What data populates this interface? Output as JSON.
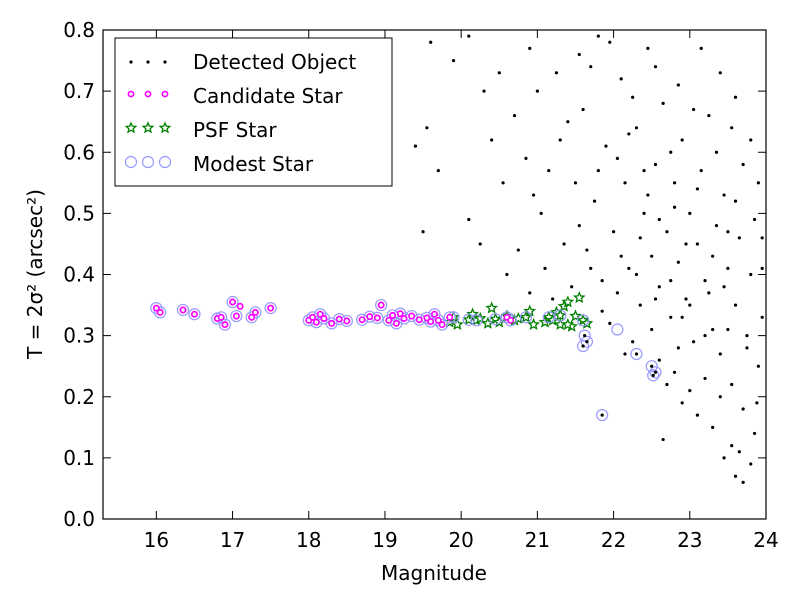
{
  "chart_data": {
    "type": "scatter",
    "title": "",
    "xlabel": "Magnitude",
    "ylabel": "T = 2σ² (arcsec²)",
    "xlim": [
      15.3,
      24.0
    ],
    "ylim": [
      0.0,
      0.8
    ],
    "xticks": [
      "16",
      "17",
      "18",
      "19",
      "20",
      "21",
      "22",
      "23",
      "24"
    ],
    "yticks": [
      "0.0",
      "0.1",
      "0.2",
      "0.3",
      "0.4",
      "0.5",
      "0.6",
      "0.7",
      "0.8"
    ],
    "grid": false,
    "legend_position": "top-left",
    "series": [
      {
        "name": "Detected Object",
        "marker": "dot",
        "color": "#000000",
        "points": [
          [
            19.6,
            0.78
          ],
          [
            19.9,
            0.75
          ],
          [
            20.1,
            0.79
          ],
          [
            20.3,
            0.7
          ],
          [
            20.5,
            0.73
          ],
          [
            20.7,
            0.66
          ],
          [
            20.9,
            0.77
          ],
          [
            21.0,
            0.7
          ],
          [
            19.55,
            0.64
          ],
          [
            19.7,
            0.57
          ],
          [
            20.1,
            0.49
          ],
          [
            20.25,
            0.45
          ],
          [
            20.4,
            0.62
          ],
          [
            20.55,
            0.55
          ],
          [
            20.85,
            0.59
          ],
          [
            21.05,
            0.5
          ],
          [
            20.6,
            0.4
          ],
          [
            20.75,
            0.44
          ],
          [
            20.9,
            0.37
          ],
          [
            21.1,
            0.41
          ],
          [
            21.2,
            0.36
          ],
          [
            21.35,
            0.45
          ],
          [
            21.45,
            0.38
          ],
          [
            20.95,
            0.53
          ],
          [
            19.4,
            0.61
          ],
          [
            19.5,
            0.47
          ],
          [
            21.15,
            0.57
          ],
          [
            21.3,
            0.62
          ],
          [
            21.5,
            0.55
          ],
          [
            21.6,
            0.67
          ],
          [
            21.7,
            0.74
          ],
          [
            21.8,
            0.79
          ],
          [
            21.65,
            0.44
          ],
          [
            21.75,
            0.52
          ],
          [
            21.85,
            0.39
          ],
          [
            21.9,
            0.61
          ],
          [
            22.0,
            0.47
          ],
          [
            22.1,
            0.72
          ],
          [
            22.15,
            0.55
          ],
          [
            22.2,
            0.41
          ],
          [
            22.3,
            0.64
          ],
          [
            22.35,
            0.35
          ],
          [
            22.4,
            0.5
          ],
          [
            22.45,
            0.77
          ],
          [
            22.5,
            0.43
          ],
          [
            22.55,
            0.58
          ],
          [
            22.6,
            0.38
          ],
          [
            22.65,
            0.68
          ],
          [
            22.7,
            0.47
          ],
          [
            22.75,
            0.33
          ],
          [
            22.8,
            0.55
          ],
          [
            22.85,
            0.42
          ],
          [
            22.9,
            0.62
          ],
          [
            22.95,
            0.36
          ],
          [
            23.0,
            0.5
          ],
          [
            23.05,
            0.29
          ],
          [
            23.1,
            0.45
          ],
          [
            23.15,
            0.57
          ],
          [
            23.2,
            0.39
          ],
          [
            23.25,
            0.66
          ],
          [
            23.3,
            0.31
          ],
          [
            23.35,
            0.48
          ],
          [
            23.4,
            0.27
          ],
          [
            23.45,
            0.53
          ],
          [
            23.5,
            0.41
          ],
          [
            23.55,
            0.22
          ],
          [
            23.6,
            0.35
          ],
          [
            23.65,
            0.46
          ],
          [
            23.7,
            0.18
          ],
          [
            23.75,
            0.3
          ],
          [
            23.8,
            0.4
          ],
          [
            23.85,
            0.14
          ],
          [
            23.9,
            0.25
          ],
          [
            23.95,
            0.33
          ],
          [
            23.6,
            0.07
          ],
          [
            23.7,
            0.06
          ],
          [
            23.8,
            0.09
          ],
          [
            23.55,
            0.12
          ],
          [
            23.65,
            0.11
          ],
          [
            23.88,
            0.19
          ],
          [
            22.05,
            0.37
          ],
          [
            22.25,
            0.29
          ],
          [
            22.5,
            0.31
          ],
          [
            22.6,
            0.26
          ],
          [
            22.8,
            0.24
          ],
          [
            22.9,
            0.19
          ],
          [
            23.0,
            0.21
          ],
          [
            23.1,
            0.17
          ],
          [
            22.65,
            0.13
          ],
          [
            23.3,
            0.15
          ],
          [
            23.45,
            0.1
          ],
          [
            21.95,
            0.32
          ],
          [
            22.15,
            0.27
          ],
          [
            22.7,
            0.22
          ],
          [
            23.2,
            0.23
          ],
          [
            23.4,
            0.2
          ],
          [
            21.4,
            0.65
          ],
          [
            21.55,
            0.76
          ],
          [
            21.25,
            0.73
          ],
          [
            21.95,
            0.78
          ],
          [
            22.25,
            0.69
          ],
          [
            22.55,
            0.74
          ],
          [
            22.85,
            0.71
          ],
          [
            23.15,
            0.77
          ],
          [
            23.4,
            0.73
          ],
          [
            23.6,
            0.69
          ],
          [
            23.8,
            0.62
          ],
          [
            23.9,
            0.55
          ],
          [
            23.7,
            0.58
          ],
          [
            23.55,
            0.64
          ],
          [
            23.35,
            0.6
          ],
          [
            23.05,
            0.67
          ],
          [
            22.95,
            0.45
          ],
          [
            23.25,
            0.37
          ],
          [
            23.5,
            0.31
          ],
          [
            23.75,
            0.28
          ],
          [
            23.95,
            0.41
          ],
          [
            22.35,
            0.46
          ],
          [
            22.45,
            0.53
          ],
          [
            22.75,
            0.6
          ],
          [
            21.55,
            0.48
          ],
          [
            21.8,
            0.57
          ],
          [
            22.05,
            0.59
          ],
          [
            22.2,
            0.63
          ],
          [
            22.4,
            0.57
          ],
          [
            22.6,
            0.49
          ],
          [
            22.8,
            0.51
          ],
          [
            23.1,
            0.54
          ],
          [
            21.7,
            0.41
          ],
          [
            21.85,
            0.34
          ],
          [
            22.1,
            0.43
          ],
          [
            22.3,
            0.4
          ],
          [
            22.55,
            0.36
          ],
          [
            22.75,
            0.39
          ],
          [
            22.9,
            0.33
          ],
          [
            23.2,
            0.3
          ],
          [
            23.3,
            0.43
          ],
          [
            23.5,
            0.47
          ],
          [
            23.6,
            0.52
          ],
          [
            23.85,
            0.49
          ],
          [
            23.95,
            0.46
          ],
          [
            23.45,
            0.38
          ],
          [
            23.0,
            0.35
          ],
          [
            22.85,
            0.28
          ]
        ]
      },
      {
        "name": "Candidate Star",
        "marker": "circle",
        "color": "#ff00ff",
        "points": [
          [
            16.0,
            0.345
          ],
          [
            16.05,
            0.338
          ],
          [
            16.35,
            0.342
          ],
          [
            16.5,
            0.335
          ],
          [
            16.8,
            0.328
          ],
          [
            16.85,
            0.33
          ],
          [
            16.9,
            0.318
          ],
          [
            17.0,
            0.355
          ],
          [
            17.05,
            0.332
          ],
          [
            17.1,
            0.348
          ],
          [
            17.25,
            0.33
          ],
          [
            17.3,
            0.338
          ],
          [
            17.5,
            0.345
          ],
          [
            18.0,
            0.325
          ],
          [
            18.05,
            0.33
          ],
          [
            18.1,
            0.322
          ],
          [
            18.15,
            0.335
          ],
          [
            18.2,
            0.328
          ],
          [
            18.3,
            0.32
          ],
          [
            18.4,
            0.327
          ],
          [
            18.5,
            0.324
          ],
          [
            18.7,
            0.326
          ],
          [
            18.8,
            0.331
          ],
          [
            18.9,
            0.329
          ],
          [
            18.95,
            0.35
          ],
          [
            19.05,
            0.325
          ],
          [
            19.1,
            0.333
          ],
          [
            19.15,
            0.32
          ],
          [
            19.2,
            0.336
          ],
          [
            19.25,
            0.328
          ],
          [
            19.35,
            0.332
          ],
          [
            19.45,
            0.326
          ],
          [
            19.55,
            0.329
          ],
          [
            19.6,
            0.323
          ],
          [
            19.65,
            0.335
          ],
          [
            19.7,
            0.325
          ],
          [
            19.75,
            0.318
          ],
          [
            19.85,
            0.33
          ],
          [
            20.6,
            0.33
          ],
          [
            20.65,
            0.325
          ]
        ]
      },
      {
        "name": "PSF Star",
        "marker": "star",
        "color": "#008000",
        "points": [
          [
            19.85,
            0.322
          ],
          [
            19.9,
            0.33
          ],
          [
            19.95,
            0.318
          ],
          [
            20.1,
            0.326
          ],
          [
            20.15,
            0.335
          ],
          [
            20.2,
            0.325
          ],
          [
            20.25,
            0.328
          ],
          [
            20.35,
            0.32
          ],
          [
            20.4,
            0.345
          ],
          [
            20.45,
            0.327
          ],
          [
            20.5,
            0.322
          ],
          [
            20.6,
            0.332
          ],
          [
            20.7,
            0.325
          ],
          [
            20.75,
            0.328
          ],
          [
            20.85,
            0.33
          ],
          [
            20.9,
            0.34
          ],
          [
            20.95,
            0.318
          ],
          [
            21.1,
            0.322
          ],
          [
            21.15,
            0.33
          ],
          [
            21.2,
            0.325
          ],
          [
            21.25,
            0.338
          ],
          [
            21.3,
            0.318
          ],
          [
            21.35,
            0.348
          ],
          [
            21.4,
            0.355
          ],
          [
            21.45,
            0.315
          ],
          [
            21.5,
            0.332
          ],
          [
            21.55,
            0.362
          ],
          [
            21.6,
            0.325
          ],
          [
            21.4,
            0.318
          ],
          [
            21.65,
            0.32
          ],
          [
            21.3,
            0.333
          ]
        ]
      },
      {
        "name": "Modest Star",
        "marker": "hollow-circle",
        "color": "#9999ff",
        "points": [
          [
            16.0,
            0.345
          ],
          [
            16.05,
            0.338
          ],
          [
            16.35,
            0.342
          ],
          [
            16.5,
            0.335
          ],
          [
            16.8,
            0.328
          ],
          [
            16.85,
            0.33
          ],
          [
            16.9,
            0.318
          ],
          [
            17.0,
            0.355
          ],
          [
            17.05,
            0.332
          ],
          [
            17.25,
            0.33
          ],
          [
            17.3,
            0.338
          ],
          [
            17.5,
            0.345
          ],
          [
            18.0,
            0.325
          ],
          [
            18.05,
            0.33
          ],
          [
            18.1,
            0.322
          ],
          [
            18.15,
            0.335
          ],
          [
            18.2,
            0.328
          ],
          [
            18.3,
            0.32
          ],
          [
            18.4,
            0.327
          ],
          [
            18.5,
            0.324
          ],
          [
            18.7,
            0.326
          ],
          [
            18.8,
            0.331
          ],
          [
            18.9,
            0.329
          ],
          [
            18.95,
            0.35
          ],
          [
            19.05,
            0.325
          ],
          [
            19.1,
            0.333
          ],
          [
            19.15,
            0.32
          ],
          [
            19.2,
            0.336
          ],
          [
            19.25,
            0.328
          ],
          [
            19.35,
            0.332
          ],
          [
            19.45,
            0.326
          ],
          [
            19.55,
            0.329
          ],
          [
            19.6,
            0.323
          ],
          [
            19.65,
            0.335
          ],
          [
            19.7,
            0.325
          ],
          [
            19.75,
            0.318
          ],
          [
            19.85,
            0.33
          ],
          [
            19.9,
            0.33
          ],
          [
            20.1,
            0.326
          ],
          [
            20.2,
            0.325
          ],
          [
            20.45,
            0.327
          ],
          [
            20.6,
            0.33
          ],
          [
            20.65,
            0.325
          ],
          [
            20.85,
            0.33
          ],
          [
            21.15,
            0.33
          ],
          [
            21.3,
            0.333
          ],
          [
            21.6,
            0.325
          ],
          [
            21.62,
            0.3
          ],
          [
            21.65,
            0.29
          ],
          [
            21.6,
            0.283
          ],
          [
            21.85,
            0.17
          ],
          [
            22.05,
            0.31
          ],
          [
            22.3,
            0.27
          ],
          [
            22.5,
            0.25
          ],
          [
            22.52,
            0.235
          ],
          [
            22.55,
            0.24
          ]
        ]
      }
    ]
  }
}
